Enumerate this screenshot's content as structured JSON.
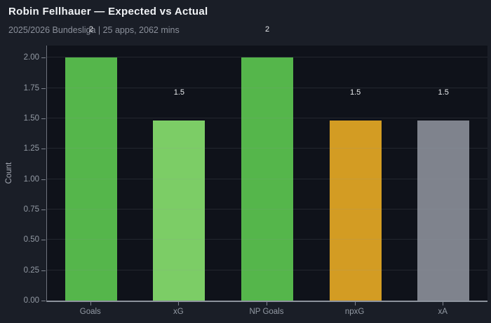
{
  "header": {
    "title": "Robin Fellhauer — Expected vs Actual",
    "subtitle": "2025/2026 Bundesliga | 25 apps, 2062 mins"
  },
  "chart_data": {
    "type": "bar",
    "title": "Robin Fellhauer — Expected vs Actual",
    "subtitle": "2025/2026 Bundesliga | 25 apps, 2062 mins",
    "categories": [
      "Goals",
      "xG",
      "NP Goals",
      "npxG",
      "xA"
    ],
    "values": [
      2.0,
      1.48,
      2.0,
      1.48,
      1.48
    ],
    "value_labels": [
      "2",
      "1.5",
      "2",
      "1.5",
      "1.5"
    ],
    "bar_colors": [
      "#55b64b",
      "#7ccd66",
      "#55b64b",
      "#d39c23",
      "#7f838d"
    ],
    "xlabel": "",
    "ylabel": "Count",
    "ylim": [
      0,
      2.1
    ],
    "yticks": [
      0,
      0.25,
      0.5,
      0.75,
      1.0,
      1.25,
      1.5,
      1.75,
      2.0
    ],
    "ytick_labels": [
      "0.00",
      "0.25",
      "0.50",
      "0.75",
      "1.00",
      "1.25",
      "1.50",
      "1.75",
      "2.00"
    ],
    "grid": true,
    "grid_on_top_of_bars": true,
    "legend": false
  },
  "colors": {
    "page_bg": "#1a1e27",
    "plot_bg": "#0f121a",
    "title_text": "#f0f2f5",
    "subtitle_text": "#8b909b",
    "tick_text": "#939aa4",
    "axis_line": "#7e838e",
    "gridline": "rgba(141,150,164,0.16)",
    "data_label_text": "#e9ebee"
  }
}
